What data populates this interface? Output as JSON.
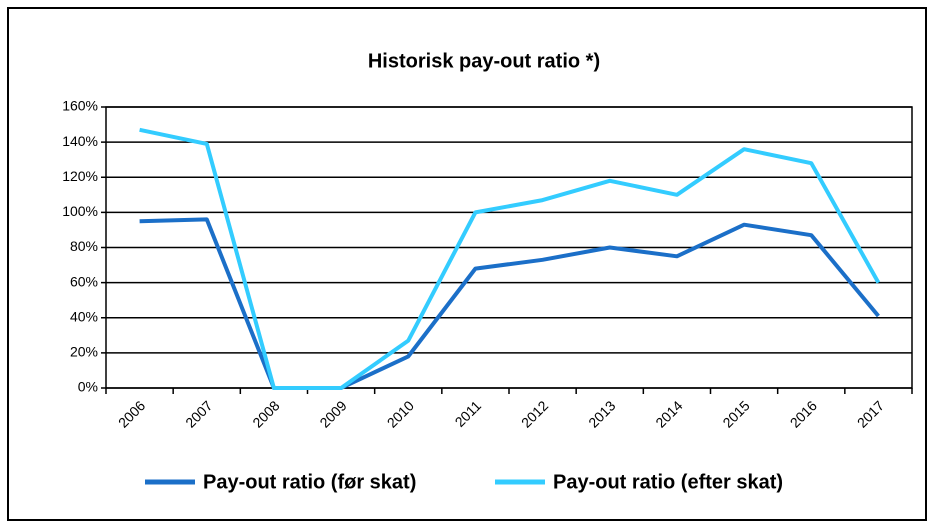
{
  "chart_data": {
    "type": "line",
    "title": "Historisk pay-out ratio *)",
    "categories": [
      "2006",
      "2007",
      "2008",
      "2009",
      "2010",
      "2011",
      "2012",
      "2013",
      "2014",
      "2015",
      "2016",
      "2017"
    ],
    "series": [
      {
        "name": "Pay-out ratio (før skat)",
        "color": "#1b6fc8",
        "values": [
          95,
          96,
          0,
          0,
          18,
          68,
          73,
          80,
          75,
          93,
          87,
          41
        ]
      },
      {
        "name": "Pay-out ratio (efter skat)",
        "color": "#33ccff",
        "values": [
          147,
          139,
          0,
          0,
          27,
          100,
          107,
          118,
          110,
          136,
          128,
          60
        ]
      }
    ],
    "ylim": [
      0,
      160
    ],
    "yticks": [
      {
        "value": 0,
        "label": "0%"
      },
      {
        "value": 20,
        "label": "20%"
      },
      {
        "value": 40,
        "label": "40%"
      },
      {
        "value": 60,
        "label": "60%"
      },
      {
        "value": 80,
        "label": "80%"
      },
      {
        "value": 100,
        "label": "100%"
      },
      {
        "value": 120,
        "label": "120%"
      },
      {
        "value": 140,
        "label": "140%"
      },
      {
        "value": 160,
        "label": "160%"
      }
    ],
    "grid": true
  }
}
